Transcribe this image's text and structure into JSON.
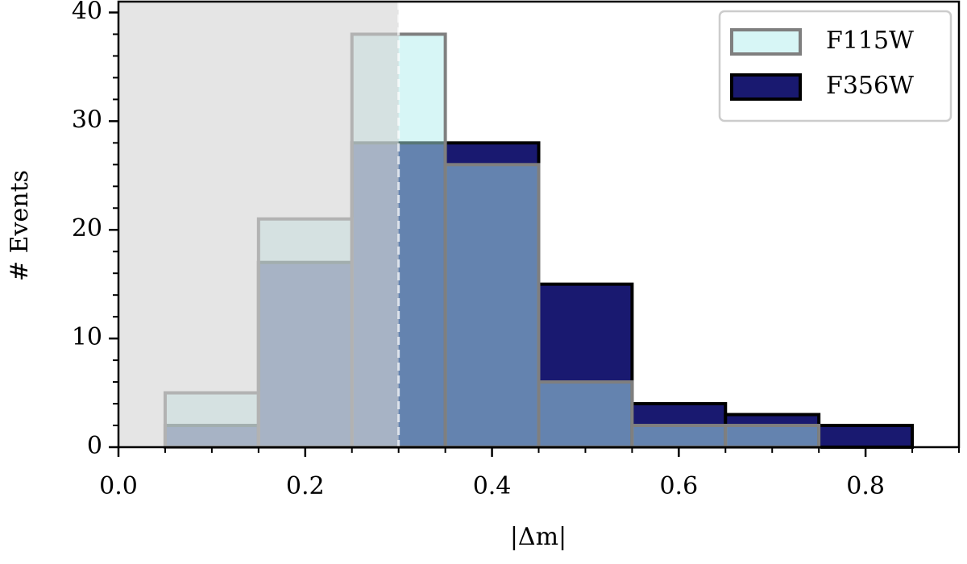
{
  "chart_data": {
    "type": "histogram",
    "xlabel": "|Δm|",
    "ylabel": "# Events",
    "bins": [
      0.05,
      0.15,
      0.25,
      0.35,
      0.45,
      0.55,
      0.65,
      0.75,
      0.85
    ],
    "series": [
      {
        "name": "F356W",
        "color": "#191970",
        "edgecolor": "#000000",
        "alpha": 1,
        "values": [
          2,
          17,
          28,
          28,
          15,
          4,
          3,
          2
        ]
      },
      {
        "name": "F115W",
        "color": "#afeeee",
        "edgecolor": "#7f7f7f",
        "alpha": 0.5,
        "values": [
          5,
          21,
          38,
          26,
          6,
          2,
          2,
          0
        ]
      }
    ],
    "shaded_region": [
      0,
      0.3
    ],
    "xlim": [
      0,
      0.9
    ],
    "ylim": [
      0,
      41
    ],
    "xticks": [
      {
        "value": 0,
        "label": "0.0"
      },
      0.2,
      0.4,
      0.6,
      0.8
    ],
    "yticks": [
      0,
      10,
      20,
      30,
      40
    ],
    "xminorticks": [
      0.05,
      0.1,
      0.15,
      0.25,
      0.3,
      0.35,
      0.45,
      0.5,
      0.55,
      0.65,
      0.7,
      0.75,
      0.85,
      0.9
    ],
    "yminorticks": [
      2,
      4,
      6,
      8,
      12,
      14,
      16,
      18,
      22,
      24,
      26,
      28,
      32,
      34,
      36,
      38
    ],
    "legend": "upper right"
  }
}
